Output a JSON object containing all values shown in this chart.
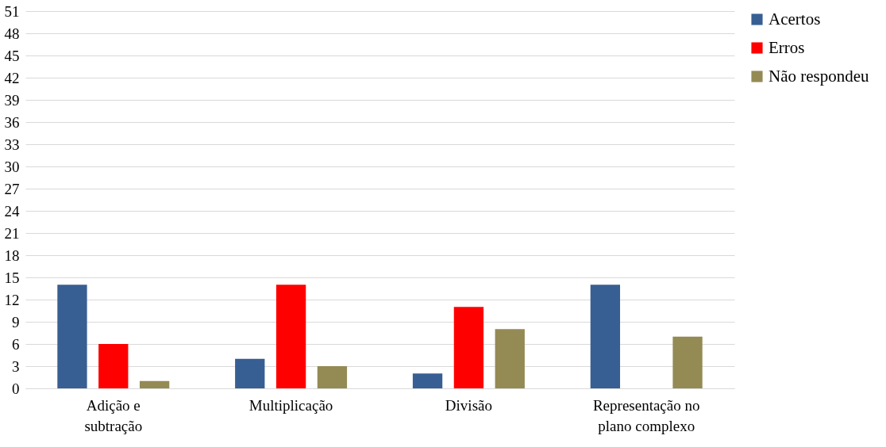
{
  "chart_data": {
    "type": "bar",
    "categories": [
      "Adição e subtração",
      "Multiplicação",
      "Divisão",
      "Representação no plano complexo"
    ],
    "series": [
      {
        "name": "Acertos",
        "color": "#375f93",
        "values": [
          14,
          4,
          2,
          14
        ]
      },
      {
        "name": "Erros",
        "color": "#ff0000",
        "values": [
          6,
          14,
          11,
          0
        ]
      },
      {
        "name": "Não respondeu",
        "color": "#948a54",
        "values": [
          1,
          3,
          8,
          7
        ]
      }
    ],
    "ylim": [
      0,
      51
    ],
    "yticks": [
      0,
      3,
      6,
      9,
      12,
      15,
      18,
      21,
      24,
      27,
      30,
      33,
      36,
      39,
      42,
      45,
      48,
      51
    ],
    "grid": "y",
    "legend": "right"
  }
}
